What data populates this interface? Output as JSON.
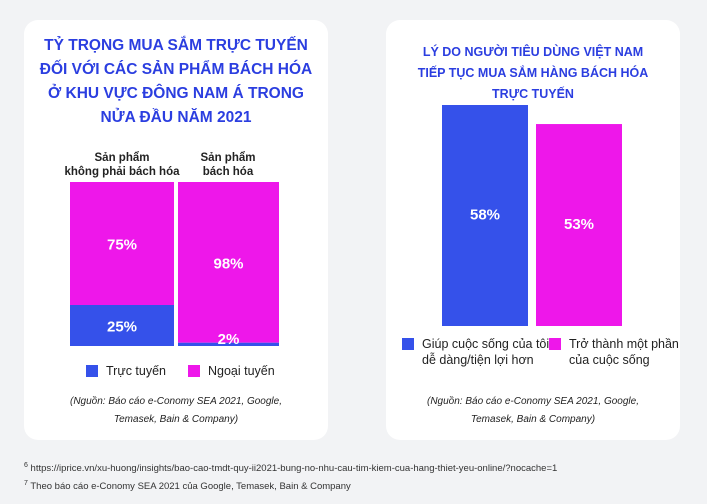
{
  "colors": {
    "online": "#3551ea",
    "offline": "#ee17ea",
    "title": "#2b3ee0"
  },
  "chart_data": [
    {
      "type": "bar",
      "stacked": true,
      "title": "TỶ TRỌNG MUA SẮM TRỰC TUYẾN\nĐỐI VỚI CÁC SẢN PHẨM BÁCH HÓA\nỞ KHU VỰC ĐÔNG NAM Á TRONG\nNỬA ĐẦU NĂM 2021",
      "categories": [
        "Sản phẩm\nkhông phải bách hóa",
        "Sản phẩm\nbách hóa"
      ],
      "series": [
        {
          "name": "Trực tuyến",
          "values": [
            25,
            2
          ],
          "labels": [
            "25%",
            "2%"
          ]
        },
        {
          "name": "Ngoại tuyến",
          "values": [
            75,
            98
          ],
          "labels": [
            "75%",
            "98%"
          ]
        }
      ],
      "ylim": [
        0,
        100
      ],
      "legend": "bottom",
      "source": "(Nguồn: Báo cáo e-Conomy SEA 2021, Google,\nTemasek, Bain & Company)"
    },
    {
      "type": "bar",
      "title": "LÝ DO NGƯỜI TIÊU DÙNG VIỆT NAM\nTIẾP TỤC MUA SẮM HÀNG BÁCH HÓA\nTRỰC TUYẾN",
      "categories": [
        "Giúp cuộc sống của tôi\ndễ dàng/tiện lợi hơn",
        "Trở thành một phần\ncủa cuộc sống"
      ],
      "values": [
        58,
        53
      ],
      "labels": [
        "58%",
        "53%"
      ],
      "ylim": [
        0,
        58
      ],
      "legend": "bottom",
      "source": "(Nguồn: Báo cáo e-Conomy SEA 2021, Google,\nTemasek, Bain & Company)"
    }
  ],
  "footnotes": [
    {
      "mark": "6",
      "text": "https://iprice.vn/xu-huong/insights/bao-cao-tmdt-quy-ii2021-bung-no-nhu-cau-tim-kiem-cua-hang-thiet-yeu-online/?nocache=1"
    },
    {
      "mark": "7",
      "text": "Theo báo cáo e-Conomy SEA 2021 của Google, Temasek, Bain & Company"
    }
  ]
}
